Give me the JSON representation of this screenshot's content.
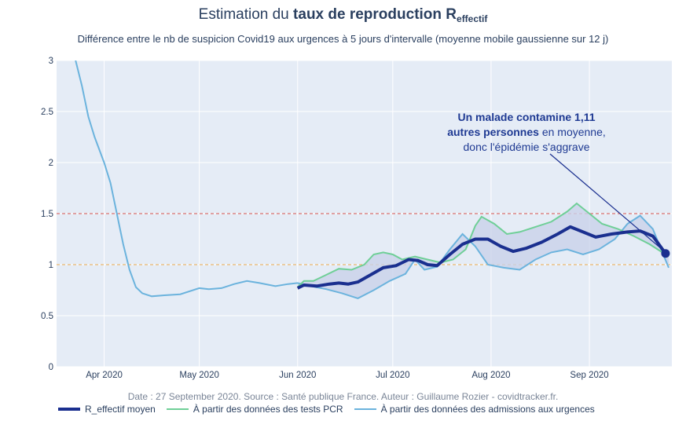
{
  "title": {
    "prefix": "Estimation du ",
    "bold": "taux de reproduction R",
    "sub": "effectif"
  },
  "subtitle": "Différence entre le nb de suspicion Covid19 aux urgences à 5 jours d'intervalle (moyenne mobile gaussienne sur 12 j)",
  "source": "Date : 27 September 2020. Source : Santé publique France. Auteur : Guillaume Rozier - covidtracker.fr.",
  "annotation": {
    "line1": "Un malade contamine 1,11",
    "line2_bold": "autres personnes",
    "line2_rest": " en moyenne,",
    "line3": "donc l'épidémie s'aggrave"
  },
  "colors": {
    "mean": "#1a2f8f",
    "pcr": "#6fcf97",
    "urg": "#6bb3dd",
    "band": "#c9d2ea",
    "plot_bg": "#e5ecf6",
    "red_line": "#d9534f",
    "orange_line": "#f0ad4e"
  },
  "chart_data": {
    "type": "line",
    "x_range": [
      "2020-03-17",
      "2020-09-27"
    ],
    "ylim": [
      0,
      3
    ],
    "y_ticks": [
      "0",
      "0.5",
      "1",
      "1.5",
      "2",
      "2.5",
      "3"
    ],
    "y_tick_values": [
      0,
      0.5,
      1,
      1.5,
      2,
      2.5,
      3
    ],
    "x_ticks": [
      {
        "date": "2020-04-01",
        "label": "Apr 2020"
      },
      {
        "date": "2020-05-01",
        "label": "May 2020"
      },
      {
        "date": "2020-06-01",
        "label": "Jun 2020"
      },
      {
        "date": "2020-07-01",
        "label": "Jul 2020"
      },
      {
        "date": "2020-08-01",
        "label": "Aug 2020"
      },
      {
        "date": "2020-09-01",
        "label": "Sep 2020"
      }
    ],
    "reference_lines": [
      {
        "y": 1.5,
        "style": "dashed-red"
      },
      {
        "y": 1.0,
        "style": "dashed-orange"
      }
    ],
    "series": [
      {
        "name": "À partir des données des admissions aux urgences",
        "points": [
          [
            "2020-03-23",
            3.0
          ],
          [
            "2020-03-25",
            2.75
          ],
          [
            "2020-03-27",
            2.45
          ],
          [
            "2020-03-29",
            2.25
          ],
          [
            "2020-04-01",
            2.0
          ],
          [
            "2020-04-03",
            1.8
          ],
          [
            "2020-04-05",
            1.5
          ],
          [
            "2020-04-07",
            1.2
          ],
          [
            "2020-04-09",
            0.95
          ],
          [
            "2020-04-11",
            0.78
          ],
          [
            "2020-04-13",
            0.72
          ],
          [
            "2020-04-16",
            0.69
          ],
          [
            "2020-04-20",
            0.7
          ],
          [
            "2020-04-25",
            0.71
          ],
          [
            "2020-05-01",
            0.77
          ],
          [
            "2020-05-04",
            0.76
          ],
          [
            "2020-05-08",
            0.77
          ],
          [
            "2020-05-12",
            0.81
          ],
          [
            "2020-05-16",
            0.84
          ],
          [
            "2020-05-20",
            0.82
          ],
          [
            "2020-05-25",
            0.79
          ],
          [
            "2020-05-29",
            0.81
          ],
          [
            "2020-06-01",
            0.82
          ],
          [
            "2020-06-05",
            0.79
          ],
          [
            "2020-06-10",
            0.76
          ],
          [
            "2020-06-15",
            0.72
          ],
          [
            "2020-06-20",
            0.67
          ],
          [
            "2020-06-25",
            0.75
          ],
          [
            "2020-06-30",
            0.84
          ],
          [
            "2020-07-05",
            0.91
          ],
          [
            "2020-07-08",
            1.05
          ],
          [
            "2020-07-11",
            0.95
          ],
          [
            "2020-07-15",
            0.98
          ],
          [
            "2020-07-19",
            1.15
          ],
          [
            "2020-07-23",
            1.3
          ],
          [
            "2020-07-27",
            1.18
          ],
          [
            "2020-07-31",
            1.0
          ],
          [
            "2020-08-05",
            0.97
          ],
          [
            "2020-08-10",
            0.95
          ],
          [
            "2020-08-15",
            1.05
          ],
          [
            "2020-08-20",
            1.12
          ],
          [
            "2020-08-25",
            1.15
          ],
          [
            "2020-08-30",
            1.1
          ],
          [
            "2020-09-04",
            1.15
          ],
          [
            "2020-09-09",
            1.25
          ],
          [
            "2020-09-13",
            1.4
          ],
          [
            "2020-09-17",
            1.48
          ],
          [
            "2020-09-21",
            1.35
          ],
          [
            "2020-09-24",
            1.12
          ],
          [
            "2020-09-26",
            0.97
          ]
        ]
      },
      {
        "name": "À partir des données des tests PCR",
        "points": [
          [
            "2020-06-01",
            0.78
          ],
          [
            "2020-06-03",
            0.84
          ],
          [
            "2020-06-06",
            0.84
          ],
          [
            "2020-06-10",
            0.9
          ],
          [
            "2020-06-14",
            0.96
          ],
          [
            "2020-06-18",
            0.95
          ],
          [
            "2020-06-22",
            1.0
          ],
          [
            "2020-06-25",
            1.1
          ],
          [
            "2020-06-28",
            1.12
          ],
          [
            "2020-07-01",
            1.1
          ],
          [
            "2020-07-04",
            1.05
          ],
          [
            "2020-07-08",
            1.08
          ],
          [
            "2020-07-12",
            1.05
          ],
          [
            "2020-07-16",
            1.02
          ],
          [
            "2020-07-20",
            1.05
          ],
          [
            "2020-07-24",
            1.15
          ],
          [
            "2020-07-27",
            1.38
          ],
          [
            "2020-07-29",
            1.47
          ],
          [
            "2020-08-02",
            1.4
          ],
          [
            "2020-08-06",
            1.3
          ],
          [
            "2020-08-10",
            1.32
          ],
          [
            "2020-08-15",
            1.37
          ],
          [
            "2020-08-20",
            1.42
          ],
          [
            "2020-08-25",
            1.52
          ],
          [
            "2020-08-28",
            1.6
          ],
          [
            "2020-09-01",
            1.5
          ],
          [
            "2020-09-05",
            1.4
          ],
          [
            "2020-09-10",
            1.35
          ],
          [
            "2020-09-15",
            1.28
          ],
          [
            "2020-09-20",
            1.2
          ],
          [
            "2020-09-24",
            1.12
          ],
          [
            "2020-09-26",
            1.08
          ]
        ]
      },
      {
        "name": "R_effectif moyen",
        "points": [
          [
            "2020-06-01",
            0.77
          ],
          [
            "2020-06-03",
            0.8
          ],
          [
            "2020-06-07",
            0.79
          ],
          [
            "2020-06-11",
            0.81
          ],
          [
            "2020-06-14",
            0.82
          ],
          [
            "2020-06-17",
            0.81
          ],
          [
            "2020-06-20",
            0.83
          ],
          [
            "2020-06-24",
            0.9
          ],
          [
            "2020-06-28",
            0.97
          ],
          [
            "2020-07-02",
            0.99
          ],
          [
            "2020-07-06",
            1.05
          ],
          [
            "2020-07-09",
            1.04
          ],
          [
            "2020-07-12",
            1.0
          ],
          [
            "2020-07-15",
            0.99
          ],
          [
            "2020-07-19",
            1.1
          ],
          [
            "2020-07-23",
            1.2
          ],
          [
            "2020-07-27",
            1.25
          ],
          [
            "2020-07-31",
            1.25
          ],
          [
            "2020-08-04",
            1.18
          ],
          [
            "2020-08-08",
            1.13
          ],
          [
            "2020-08-12",
            1.16
          ],
          [
            "2020-08-17",
            1.22
          ],
          [
            "2020-08-22",
            1.3
          ],
          [
            "2020-08-26",
            1.37
          ],
          [
            "2020-08-30",
            1.32
          ],
          [
            "2020-09-03",
            1.27
          ],
          [
            "2020-09-08",
            1.3
          ],
          [
            "2020-09-13",
            1.32
          ],
          [
            "2020-09-17",
            1.33
          ],
          [
            "2020-09-21",
            1.28
          ],
          [
            "2020-09-25",
            1.11
          ]
        ]
      }
    ]
  },
  "legend": [
    {
      "label": "R_effectif moyen",
      "color": "#1a2f8f",
      "width": 4
    },
    {
      "label": "À partir des données des tests PCR",
      "color": "#6fcf97",
      "width": 2
    },
    {
      "label": "À partir des données des admissions aux urgences",
      "color": "#6bb3dd",
      "width": 2
    }
  ]
}
